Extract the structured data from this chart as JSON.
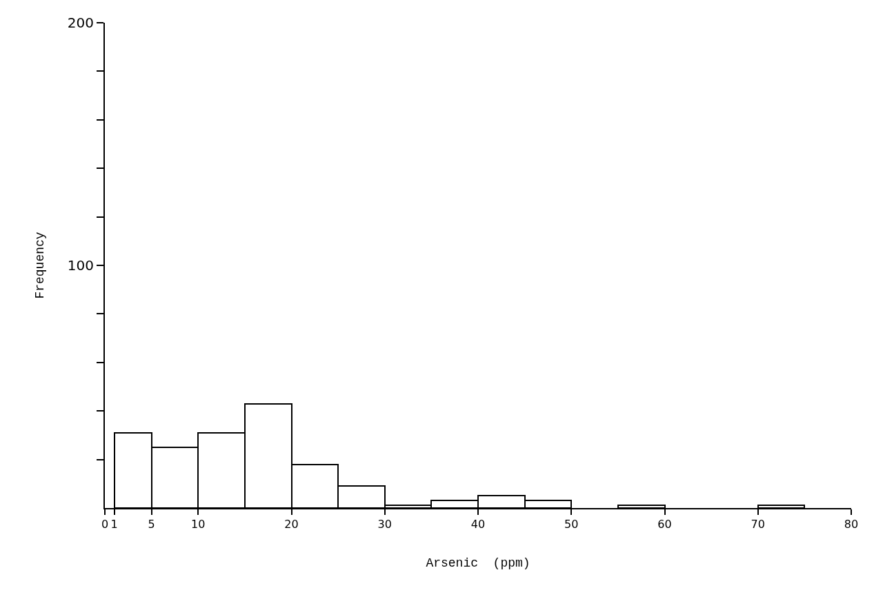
{
  "chart_data": {
    "type": "histogram",
    "xlabel": "Arsenic  (ppm)",
    "ylabel": "Frequency",
    "bins": [
      1,
      5,
      10,
      15,
      20,
      25,
      30,
      35,
      40,
      45,
      50,
      55,
      60,
      70,
      75
    ],
    "values": [
      31,
      25,
      31,
      43,
      18,
      9,
      1,
      3,
      5,
      3,
      0,
      1,
      0,
      1
    ],
    "color": "#ffffff",
    "xlim": [
      0,
      80
    ],
    "xticks": [
      0,
      1,
      5,
      10,
      20,
      30,
      40,
      50,
      60,
      70,
      80
    ],
    "ylim": [
      0,
      200
    ],
    "yticks": [
      {
        "value": 20,
        "label": null
      },
      {
        "value": 40,
        "label": null
      },
      {
        "value": 60,
        "label": null
      },
      {
        "value": 80,
        "label": null
      },
      100,
      {
        "value": 120,
        "label": null
      },
      {
        "value": 140,
        "label": null
      },
      {
        "value": 160,
        "label": null
      },
      {
        "value": 180,
        "label": null
      },
      200
    ],
    "grid": false
  }
}
